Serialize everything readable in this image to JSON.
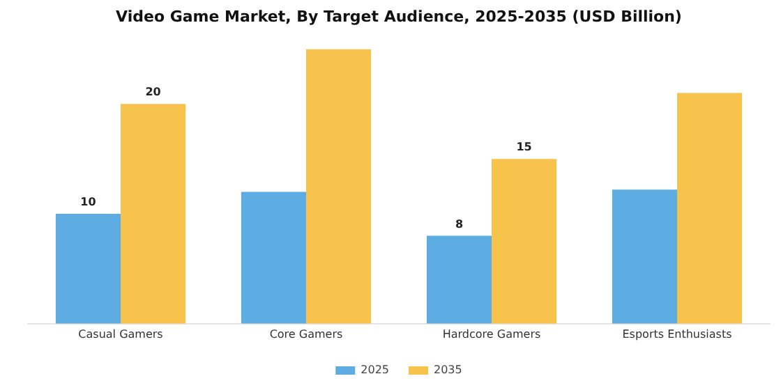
{
  "chart_data": {
    "type": "bar",
    "title": "Video Game Market, By Target Audience, 2025-2035 (USD Billion)",
    "categories": [
      "Casual Gamers",
      "Core Gamers",
      "Hardcore Gamers",
      "Esports Enthusiasts"
    ],
    "series": [
      {
        "name": "2025",
        "color": "#5dade2",
        "values": [
          10,
          12,
          8,
          12.2
        ],
        "value_labels": [
          "10",
          null,
          "8",
          null
        ]
      },
      {
        "name": "2035",
        "color": "#f7c34c",
        "values": [
          20,
          25,
          15,
          21
        ],
        "value_labels": [
          "20",
          null,
          "15",
          null
        ]
      }
    ],
    "tick_labels": "x",
    "grid": false,
    "legend": "bottom"
  }
}
